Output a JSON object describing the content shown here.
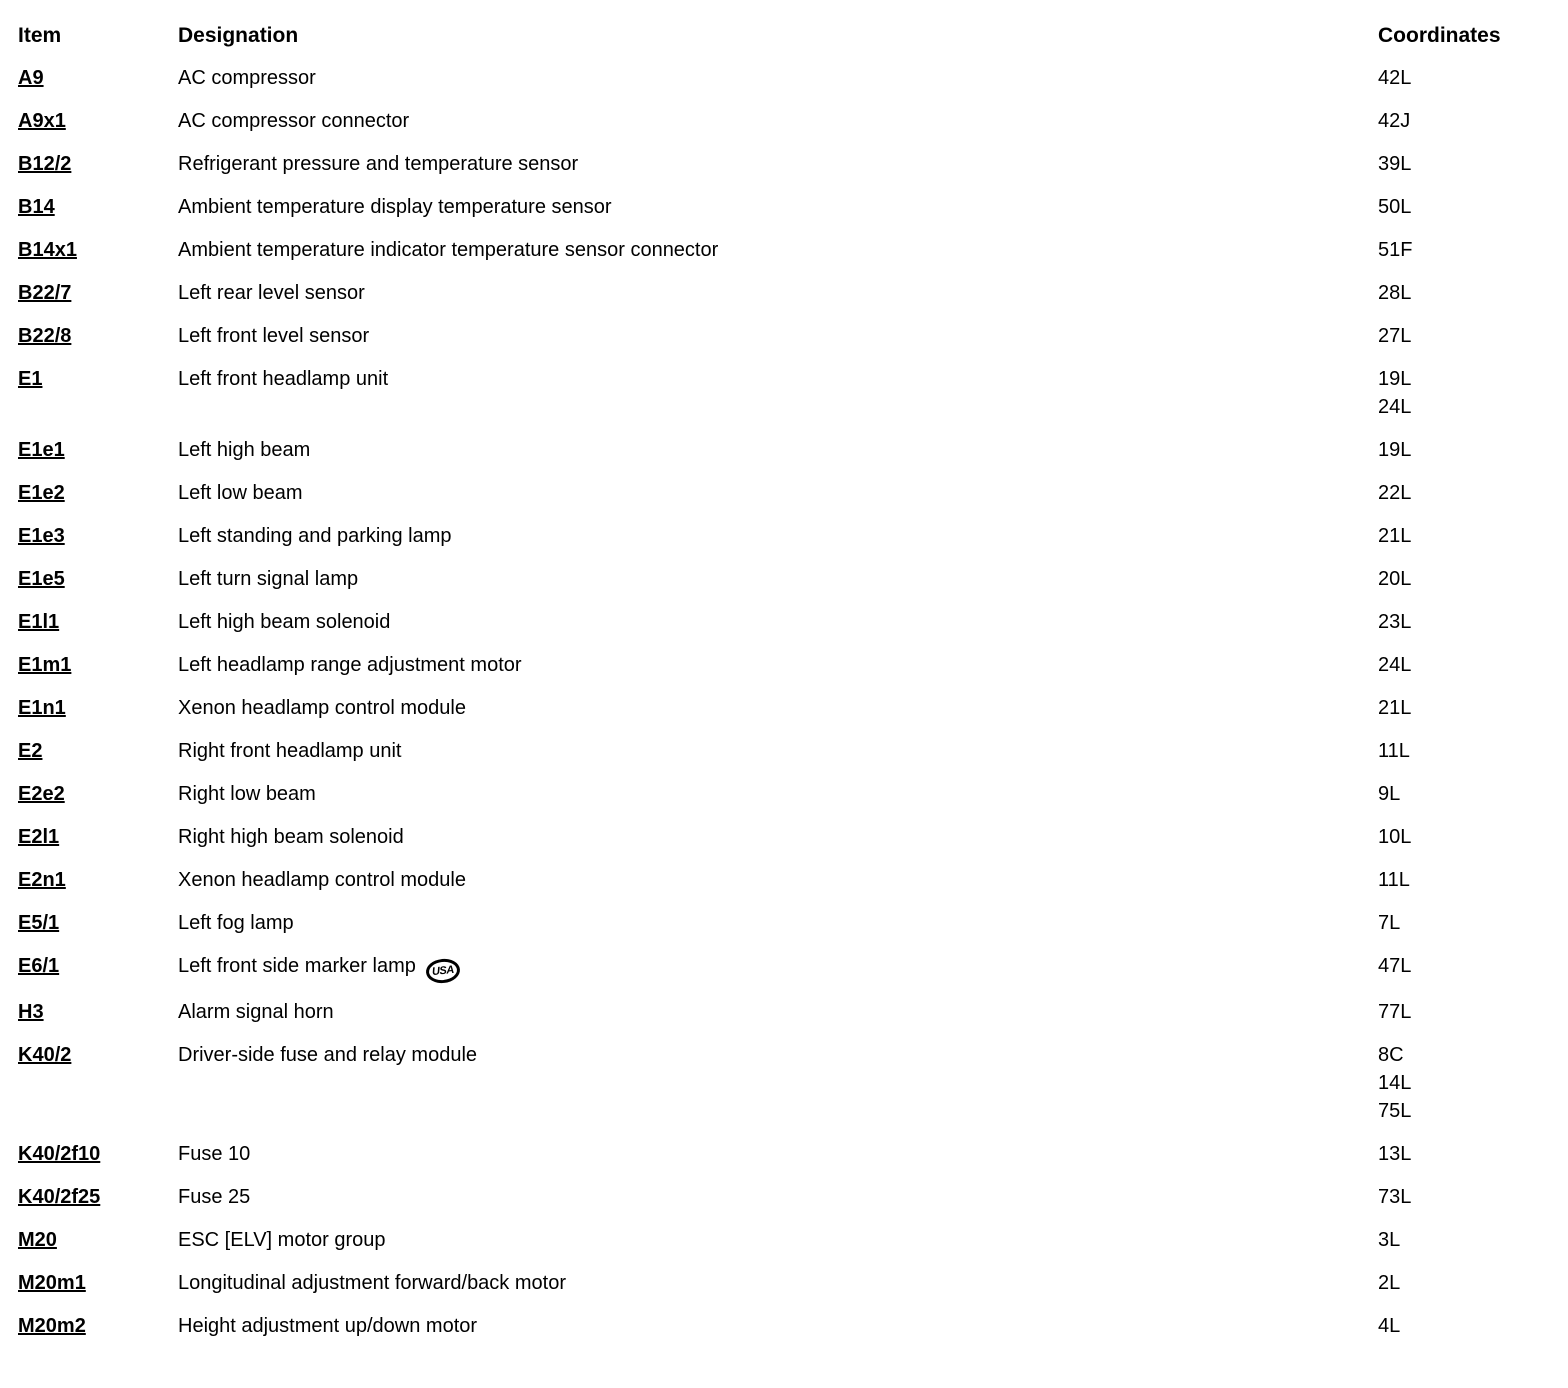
{
  "table": {
    "headers": {
      "item": "Item",
      "designation": "Designation",
      "coordinates": "Coordinates"
    },
    "rows": [
      {
        "item": "A9",
        "designation": "AC compressor",
        "coordinates": [
          "42L"
        ]
      },
      {
        "item": "A9x1",
        "designation": "AC compressor connector",
        "coordinates": [
          "42J"
        ]
      },
      {
        "item": "B12/2",
        "designation": "Refrigerant pressure and temperature sensor",
        "coordinates": [
          "39L"
        ]
      },
      {
        "item": "B14",
        "designation": "Ambient temperature display temperature sensor",
        "coordinates": [
          "50L"
        ]
      },
      {
        "item": "B14x1",
        "designation": "Ambient temperature indicator temperature sensor connector",
        "coordinates": [
          "51F"
        ]
      },
      {
        "item": "B22/7",
        "designation": "Left rear level sensor",
        "coordinates": [
          "28L"
        ]
      },
      {
        "item": "B22/8",
        "designation": "Left front level sensor",
        "coordinates": [
          "27L"
        ]
      },
      {
        "item": "E1",
        "designation": "Left front headlamp unit",
        "coordinates": [
          "19L",
          "24L"
        ]
      },
      {
        "item": "E1e1",
        "designation": "Left high beam",
        "coordinates": [
          "19L"
        ]
      },
      {
        "item": "E1e2",
        "designation": "Left low beam",
        "coordinates": [
          "22L"
        ]
      },
      {
        "item": "E1e3",
        "designation": "Left standing and parking lamp",
        "coordinates": [
          "21L"
        ]
      },
      {
        "item": "E1e5",
        "designation": "Left turn signal lamp",
        "coordinates": [
          "20L"
        ]
      },
      {
        "item": "E1l1",
        "designation": "Left high beam solenoid",
        "coordinates": [
          "23L"
        ]
      },
      {
        "item": "E1m1",
        "designation": "Left headlamp range adjustment motor",
        "coordinates": [
          "24L"
        ]
      },
      {
        "item": "E1n1",
        "designation": "Xenon headlamp control module",
        "coordinates": [
          "21L"
        ]
      },
      {
        "item": "E2",
        "designation": "Right front headlamp unit",
        "coordinates": [
          "11L"
        ]
      },
      {
        "item": "E2e2",
        "designation": "Right low beam",
        "coordinates": [
          "9L"
        ]
      },
      {
        "item": "E2l1",
        "designation": "Right high beam solenoid",
        "coordinates": [
          "10L"
        ]
      },
      {
        "item": "E2n1",
        "designation": "Xenon headlamp control module",
        "coordinates": [
          "11L"
        ]
      },
      {
        "item": "E5/1",
        "designation": "Left fog lamp",
        "coordinates": [
          "7L"
        ]
      },
      {
        "item": "E6/1",
        "designation": "Left front side marker lamp",
        "badge": "USA",
        "coordinates": [
          "47L"
        ]
      },
      {
        "item": "H3",
        "designation": "Alarm signal horn",
        "coordinates": [
          "77L"
        ]
      },
      {
        "item": "K40/2",
        "designation": "Driver-side fuse and relay module",
        "coordinates": [
          "8C",
          "14L",
          "75L"
        ]
      },
      {
        "item": "K40/2f10",
        "designation": "Fuse 10",
        "coordinates": [
          "13L"
        ]
      },
      {
        "item": "K40/2f25",
        "designation": "Fuse 25",
        "coordinates": [
          "73L"
        ]
      },
      {
        "item": "M20",
        "designation": "ESC [ELV] motor group",
        "coordinates": [
          "3L"
        ]
      },
      {
        "item": "M20m1",
        "designation": "Longitudinal adjustment forward/back motor",
        "coordinates": [
          "2L"
        ]
      },
      {
        "item": "M20m2",
        "designation": "Height adjustment up/down motor",
        "coordinates": [
          "4L"
        ]
      }
    ]
  }
}
